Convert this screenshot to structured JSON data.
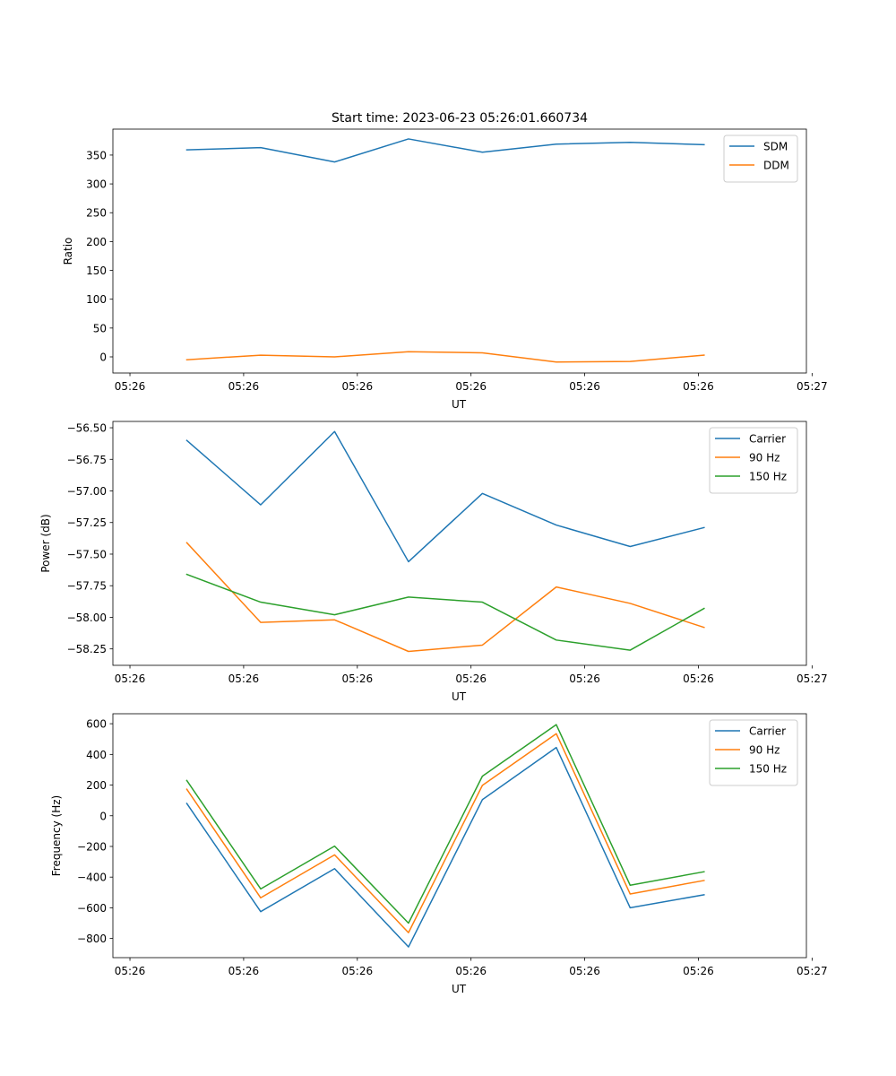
{
  "figure": {
    "title": "Start time: 2023-06-23 05:26:01.660734"
  },
  "chart_data": [
    {
      "type": "line",
      "title": "Start time: 2023-06-23 05:26:01.660734",
      "xlabel": "UT",
      "ylabel": "Ratio",
      "x_tick_labels": [
        "05:26",
        "05:26",
        "05:26",
        "05:26",
        "05:26",
        "05:26",
        "05:27"
      ],
      "y_ticks": [
        0,
        50,
        100,
        150,
        200,
        250,
        300,
        350
      ],
      "ylim": [
        -28,
        395
      ],
      "grid": false,
      "legend_position": "top-right",
      "x": [
        0.5,
        1.15,
        1.8,
        2.45,
        3.1,
        3.75,
        4.4,
        5.05
      ],
      "xlim": [
        -0.15,
        5.95
      ],
      "series": [
        {
          "name": "SDM",
          "color": "#1f77b4",
          "values": [
            359,
            363,
            338,
            378,
            355,
            369,
            372,
            368
          ]
        },
        {
          "name": "DDM",
          "color": "#ff7f0e",
          "values": [
            -5,
            3,
            0,
            9,
            7,
            -9,
            -8,
            3
          ]
        }
      ]
    },
    {
      "type": "line",
      "title": "",
      "xlabel": "UT",
      "ylabel": "Power (dB)",
      "x_tick_labels": [
        "05:26",
        "05:26",
        "05:26",
        "05:26",
        "05:26",
        "05:26",
        "05:27"
      ],
      "y_ticks": [
        -58.25,
        -58.0,
        -57.75,
        -57.5,
        -57.25,
        -57.0,
        -56.75,
        -56.5
      ],
      "y_tick_labels": [
        "−58.25",
        "−58.00",
        "−57.75",
        "−57.50",
        "−57.25",
        "−57.00",
        "−56.75",
        "−56.50"
      ],
      "ylim": [
        -58.38,
        -56.45
      ],
      "grid": false,
      "legend_position": "top-right",
      "x": [
        0.5,
        1.15,
        1.8,
        2.45,
        3.1,
        3.75,
        4.4,
        5.05
      ],
      "xlim": [
        -0.15,
        5.95
      ],
      "series": [
        {
          "name": "Carrier",
          "color": "#1f77b4",
          "values": [
            -56.6,
            -57.11,
            -56.53,
            -57.56,
            -57.02,
            -57.27,
            -57.44,
            -57.29
          ]
        },
        {
          "name": "90 Hz",
          "color": "#ff7f0e",
          "values": [
            -57.41,
            -58.04,
            -58.02,
            -58.27,
            -58.22,
            -57.76,
            -57.89,
            -58.08
          ]
        },
        {
          "name": "150 Hz",
          "color": "#2ca02c",
          "values": [
            -57.66,
            -57.88,
            -57.98,
            -57.84,
            -57.88,
            -58.18,
            -58.26,
            -57.93
          ]
        }
      ]
    },
    {
      "type": "line",
      "title": "",
      "xlabel": "UT",
      "ylabel": "Frequency (Hz)",
      "x_tick_labels": [
        "05:26",
        "05:26",
        "05:26",
        "05:26",
        "05:26",
        "05:26",
        "05:27"
      ],
      "y_ticks": [
        -800,
        -600,
        -400,
        -200,
        0,
        200,
        400,
        600
      ],
      "y_tick_labels": [
        "−800",
        "−600",
        "−400",
        "−200",
        "0",
        "200",
        "400",
        "600"
      ],
      "ylim": [
        -925,
        665
      ],
      "grid": false,
      "legend_position": "top-right",
      "x": [
        0.5,
        1.15,
        1.8,
        2.45,
        3.1,
        3.75,
        4.4,
        5.05
      ],
      "xlim": [
        -0.15,
        5.95
      ],
      "series": [
        {
          "name": "Carrier",
          "color": "#1f77b4",
          "values": [
            80,
            -625,
            -345,
            -855,
            105,
            445,
            -600,
            -515
          ]
        },
        {
          "name": "90 Hz",
          "color": "#ff7f0e",
          "values": [
            173,
            -535,
            -255,
            -762,
            198,
            535,
            -510,
            -422
          ]
        },
        {
          "name": "150 Hz",
          "color": "#2ca02c",
          "values": [
            230,
            -477,
            -198,
            -700,
            258,
            594,
            -453,
            -365
          ]
        }
      ]
    }
  ]
}
